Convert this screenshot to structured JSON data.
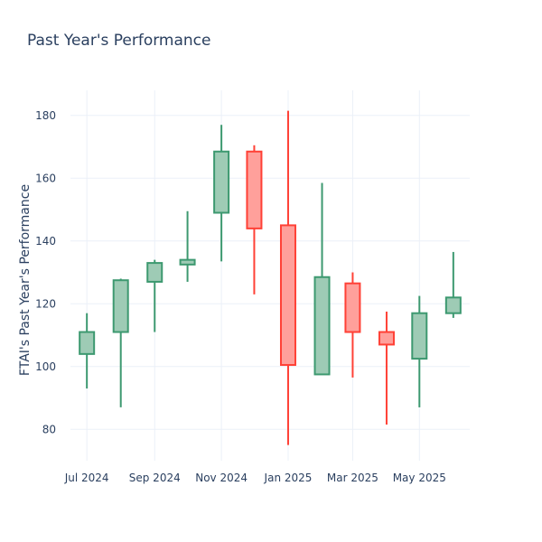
{
  "chart_data": {
    "type": "candlestick",
    "title": "Past Year's Performance",
    "ylabel": "FTAI's Past Year's Performance",
    "xlabel": "",
    "ylim": [
      70,
      188
    ],
    "y_ticks": [
      80,
      100,
      120,
      140,
      160,
      180
    ],
    "x_ticks": [
      "Jul 2024",
      "Sep 2024",
      "Nov 2024",
      "Jan 2025",
      "Mar 2025",
      "May 2025"
    ],
    "grid": true,
    "colors": {
      "increasing_line": "#3d9970",
      "increasing_fill": "#9ecbb5",
      "decreasing_line": "#ff4136",
      "decreasing_fill": "#ffa09b",
      "grid": "#ebf0f8",
      "text": "#2a3f5f"
    },
    "candles": [
      {
        "date": "2024-07-01",
        "open": 104,
        "high": 117,
        "low": 93,
        "close": 111
      },
      {
        "date": "2024-08-01",
        "open": 111,
        "high": 128,
        "low": 87,
        "close": 127.5
      },
      {
        "date": "2024-09-01",
        "open": 127,
        "high": 134,
        "low": 111,
        "close": 133
      },
      {
        "date": "2024-10-01",
        "open": 132.5,
        "high": 149.5,
        "low": 127,
        "close": 134
      },
      {
        "date": "2024-11-01",
        "open": 149,
        "high": 177,
        "low": 133.5,
        "close": 168.5
      },
      {
        "date": "2024-12-01",
        "open": 168.5,
        "high": 170.5,
        "low": 123,
        "close": 144
      },
      {
        "date": "2025-01-01",
        "open": 145,
        "high": 181.5,
        "low": 75,
        "close": 100.5
      },
      {
        "date": "2025-02-01",
        "open": 97.5,
        "high": 158.5,
        "low": 97.5,
        "close": 128.5
      },
      {
        "date": "2025-03-01",
        "open": 126.5,
        "high": 130,
        "low": 96.5,
        "close": 111
      },
      {
        "date": "2025-04-01",
        "open": 111,
        "high": 117.5,
        "low": 81.5,
        "close": 107
      },
      {
        "date": "2025-05-01",
        "open": 102.5,
        "high": 122.5,
        "low": 87,
        "close": 117
      },
      {
        "date": "2025-06-01",
        "open": 117,
        "high": 136.5,
        "low": 115.5,
        "close": 122
      }
    ]
  }
}
